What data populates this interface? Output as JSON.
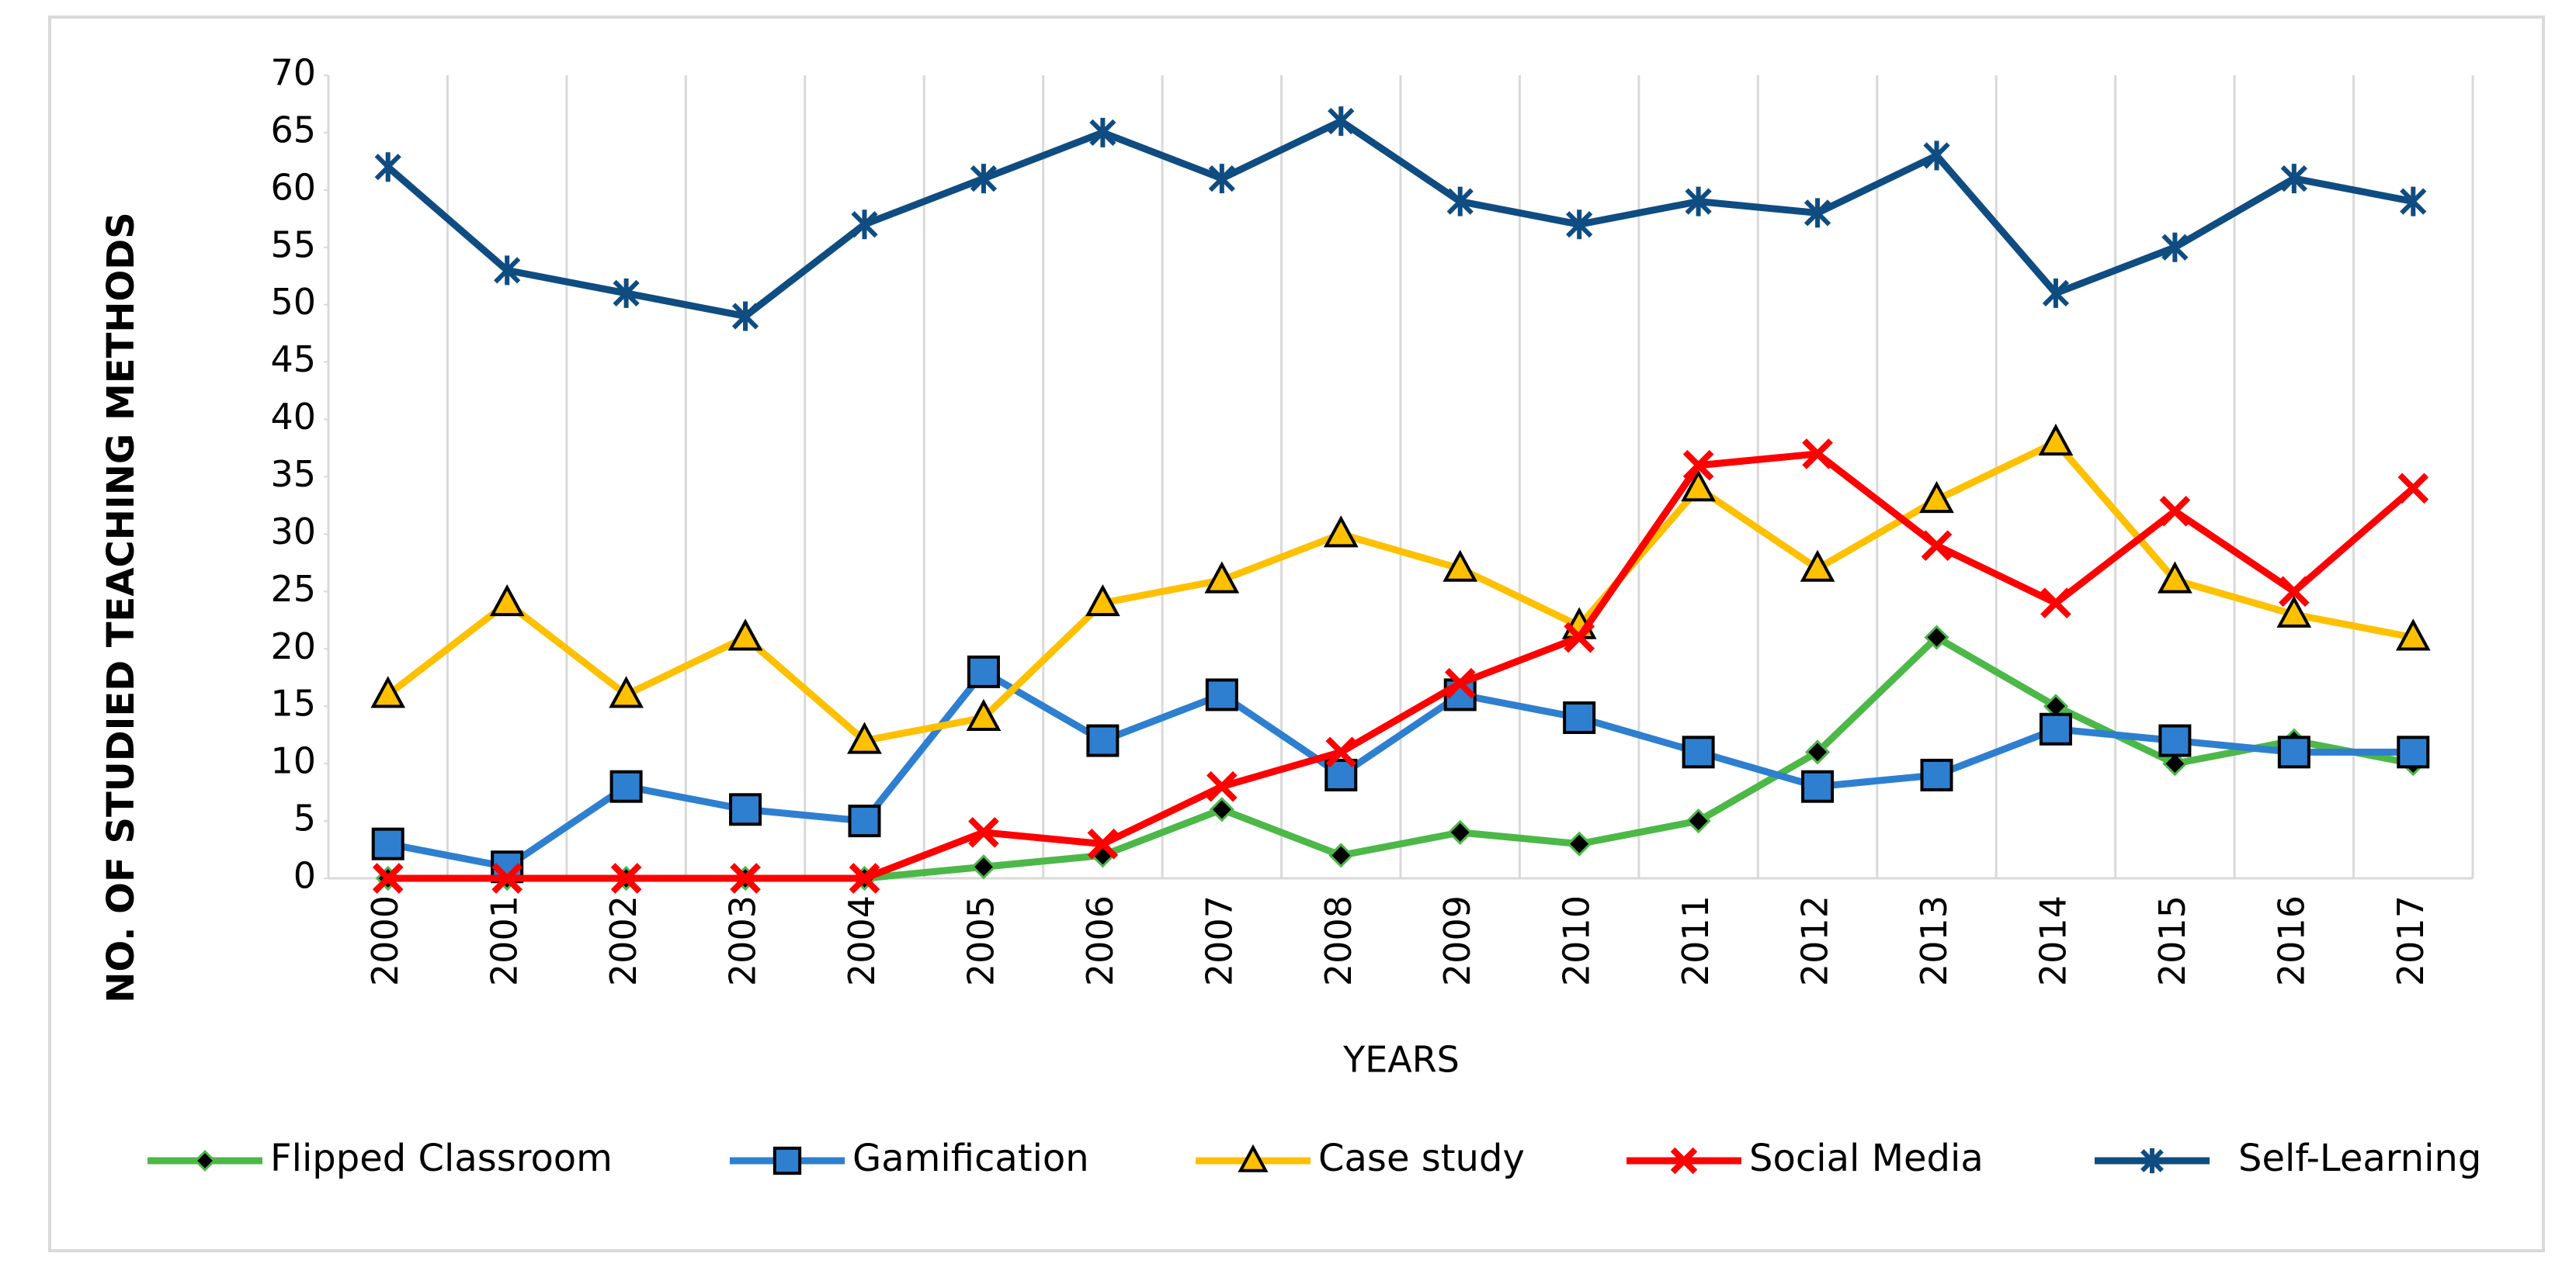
{
  "chart_data": {
    "type": "line",
    "x_label": "YEARS",
    "y_label": "NO. OF STUDIED TEACHING METHODS",
    "categories": [
      "2000",
      "2001",
      "2002",
      "2003",
      "2004",
      "2005",
      "2006",
      "2007",
      "2008",
      "2009",
      "2010",
      "2011",
      "2012",
      "2013",
      "2014",
      "2015",
      "2016",
      "2017"
    ],
    "ylim": [
      0,
      70
    ],
    "yticks": [
      0,
      5,
      10,
      15,
      20,
      25,
      30,
      35,
      40,
      45,
      50,
      55,
      60,
      65,
      70
    ],
    "grid": true,
    "legend": "bottom",
    "series": [
      {
        "name": "Flipped Classroom",
        "color": "#4cb848",
        "marker": "diamond",
        "values": [
          0,
          0,
          0,
          0,
          0,
          1,
          2,
          6,
          2,
          4,
          3,
          5,
          11,
          21,
          15,
          10,
          12,
          10
        ]
      },
      {
        "name": "Gamification",
        "color": "#2e7fd0",
        "marker": "square",
        "values": [
          3,
          1,
          8,
          6,
          5,
          18,
          12,
          16,
          9,
          16,
          14,
          11,
          8,
          9,
          13,
          12,
          11,
          11
        ]
      },
      {
        "name": "Case study",
        "color": "#ffc000",
        "marker": "triangle",
        "values": [
          16,
          24,
          16,
          21,
          12,
          14,
          24,
          26,
          30,
          27,
          22,
          34,
          27,
          33,
          38,
          26,
          23,
          21
        ]
      },
      {
        "name": "Social Media",
        "color": "#ff0000",
        "marker": "x",
        "values": [
          0,
          0,
          0,
          0,
          0,
          4,
          3,
          8,
          11,
          17,
          21,
          36,
          37,
          29,
          24,
          32,
          25,
          34
        ]
      },
      {
        "name": "Self-Learning",
        "color": "#0f4c81",
        "marker": "star",
        "values": [
          62,
          53,
          51,
          49,
          57,
          61,
          65,
          61,
          66,
          59,
          57,
          59,
          58,
          63,
          51,
          55,
          61,
          59
        ]
      }
    ]
  }
}
